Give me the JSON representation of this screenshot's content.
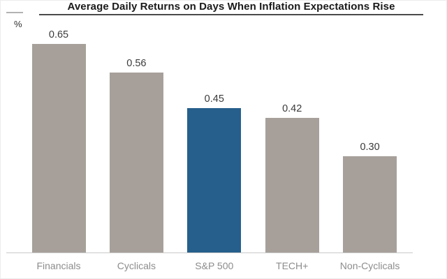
{
  "header": {
    "title": "Average Daily Returns on Days When Inflation Expectations Rise",
    "unit_label": "%"
  },
  "chart_data": {
    "type": "bar",
    "title": "Average Daily Returns on Days When Inflation Expectations Rise",
    "xlabel": "",
    "ylabel": "%",
    "categories": [
      "Financials",
      "Cyclicals",
      "S&P 500",
      "TECH+",
      "Non-Cyclicals"
    ],
    "values": [
      0.65,
      0.56,
      0.45,
      0.42,
      0.3
    ],
    "value_labels": [
      "0.65",
      "0.56",
      "0.45",
      "0.42",
      "0.30"
    ],
    "highlight_index": 2,
    "highlighted_category": "S&P 500",
    "ylim": [
      0,
      0.7
    ],
    "grid": false,
    "legend": false,
    "colors": {
      "bar_default": "#a7a09a",
      "bar_highlight": "#265f8c",
      "value_label": "#3a3a3a",
      "category_label": "#8c8c8c",
      "axis_line": "#c9c9c9",
      "title_text": "#1a1a1a",
      "title_underline": "#4a4a4a"
    }
  }
}
